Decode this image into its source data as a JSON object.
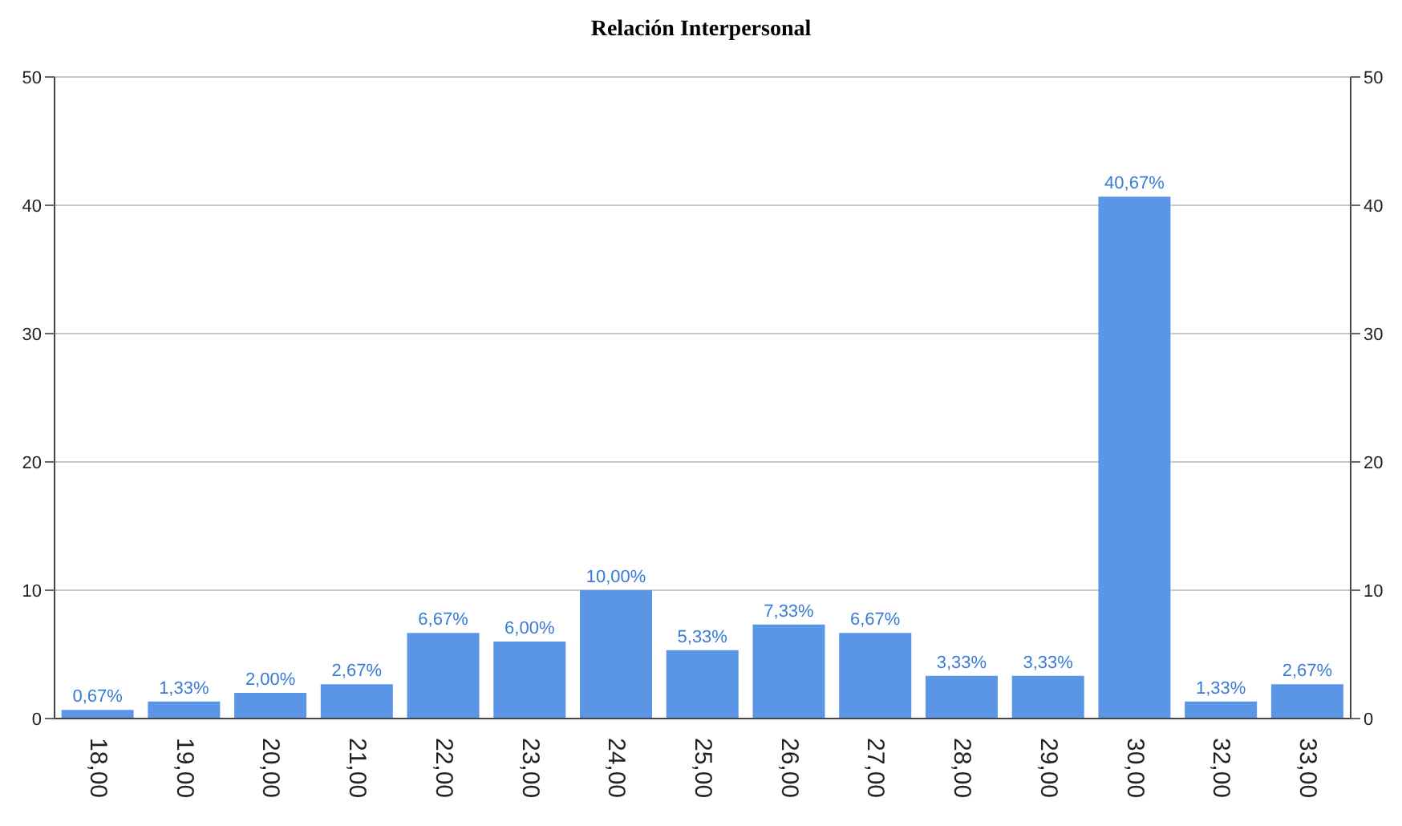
{
  "chart_data": {
    "type": "bar",
    "title": "Relación Interpersonal",
    "categories": [
      "18,00",
      "19,00",
      "20,00",
      "21,00",
      "22,00",
      "23,00",
      "24,00",
      "25,00",
      "26,00",
      "27,00",
      "28,00",
      "29,00",
      "30,00",
      "32,00",
      "33,00"
    ],
    "values": [
      0.67,
      1.33,
      2.0,
      2.67,
      6.67,
      6.0,
      10.0,
      5.33,
      7.33,
      6.67,
      3.33,
      3.33,
      40.67,
      1.33,
      2.67
    ],
    "value_labels": [
      "0,67%",
      "1,33%",
      "2,00%",
      "2,67%",
      "6,67%",
      "6,00%",
      "10,00%",
      "5,33%",
      "7,33%",
      "6,67%",
      "3,33%",
      "3,33%",
      "40,67%",
      "1,33%",
      "2,67%"
    ],
    "color": "#5b96e6",
    "ylim": [
      0,
      50
    ],
    "yticks": [
      0,
      10,
      20,
      30,
      40,
      50
    ],
    "y2lim": [
      0,
      50
    ],
    "y2ticks": [
      0,
      10,
      20,
      30,
      40,
      50
    ],
    "grid": "y"
  }
}
